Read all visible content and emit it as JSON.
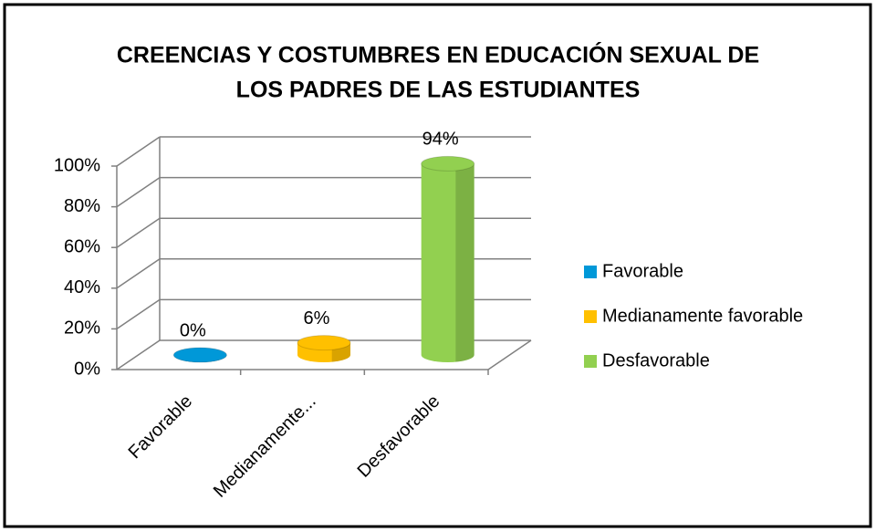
{
  "chart_data": {
    "type": "bar3d",
    "title": [
      "CREENCIAS Y COSTUMBRES EN EDUCACIÓN SEXUAL DE",
      "LOS PADRES DE LAS ESTUDIANTES"
    ],
    "categories": [
      "Favorable",
      "Medianamente...",
      "Desfavorable"
    ],
    "legend": [
      "Favorable",
      "Medianamente favorable",
      "Desfavorable"
    ],
    "colors": [
      "#0098d8",
      "#ffc000",
      "#92d050"
    ],
    "values": [
      0,
      6,
      94
    ],
    "value_labels": [
      "0%",
      "6%",
      "94%"
    ],
    "ylim": [
      0,
      100
    ],
    "yticks": [
      {
        "value": 0,
        "label": "0%"
      },
      {
        "value": 20,
        "label": "20%"
      },
      {
        "value": 40,
        "label": "40%"
      },
      {
        "value": 60,
        "label": "60%"
      },
      {
        "value": 80,
        "label": "80%"
      },
      {
        "value": 100,
        "label": "100%"
      }
    ],
    "grid": true
  }
}
